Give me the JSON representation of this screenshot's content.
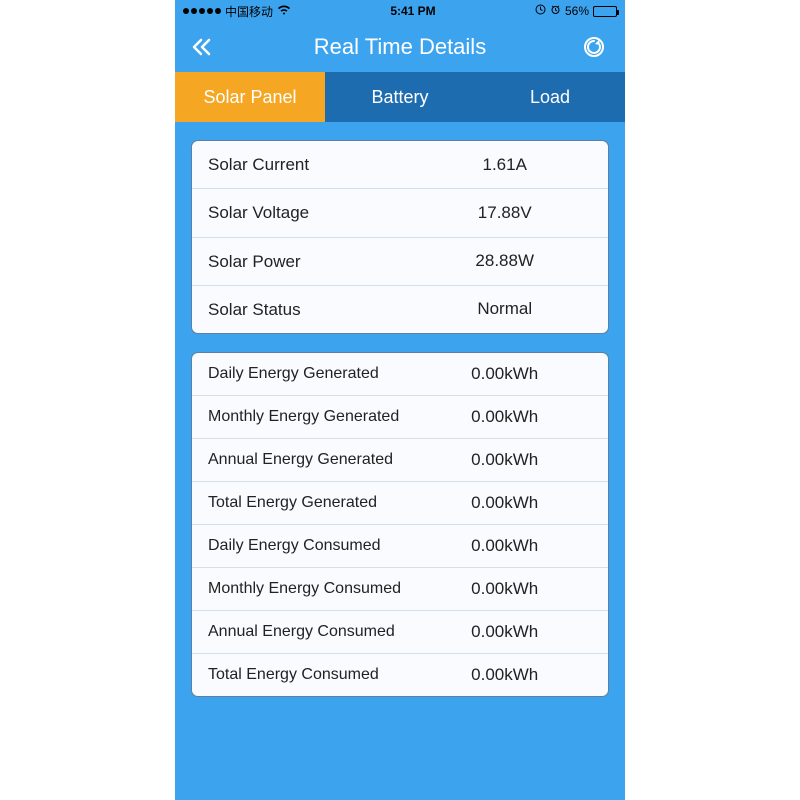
{
  "status_bar": {
    "carrier": "中国移动",
    "time": "5:41 PM",
    "battery_pct": "56%",
    "battery_fill_pct": 56
  },
  "nav": {
    "title": "Real Time Details"
  },
  "tabs": [
    {
      "label": "Solar Panel",
      "active": true
    },
    {
      "label": "Battery",
      "active": false
    },
    {
      "label": "Load",
      "active": false
    }
  ],
  "status_card": [
    {
      "label": "Solar Current",
      "value": "1.61A"
    },
    {
      "label": "Solar Voltage",
      "value": "17.88V"
    },
    {
      "label": "Solar Power",
      "value": "28.88W"
    },
    {
      "label": "Solar Status",
      "value": "Normal"
    }
  ],
  "energy_card": [
    {
      "label": "Daily Energy Generated",
      "value": "0.00kWh"
    },
    {
      "label": "Monthly Energy Generated",
      "value": "0.00kWh"
    },
    {
      "label": "Annual Energy Generated",
      "value": "0.00kWh"
    },
    {
      "label": "Total Energy Generated",
      "value": "0.00kWh"
    },
    {
      "label": "Daily Energy Consumed",
      "value": "0.00kWh"
    },
    {
      "label": "Monthly Energy Consumed",
      "value": "0.00kWh"
    },
    {
      "label": "Annual Energy Consumed",
      "value": "0.00kWh"
    },
    {
      "label": "Total Energy Consumed",
      "value": "0.00kWh"
    }
  ],
  "colors": {
    "bar_bg": "#3ca4ef",
    "tab_inactive": "#1e6cb0",
    "tab_active": "#f5a623",
    "card_bg": "#f9fbfe",
    "card_border": "#5c7fa3",
    "row_divider": "#d6e0ec",
    "text": "#222222"
  }
}
